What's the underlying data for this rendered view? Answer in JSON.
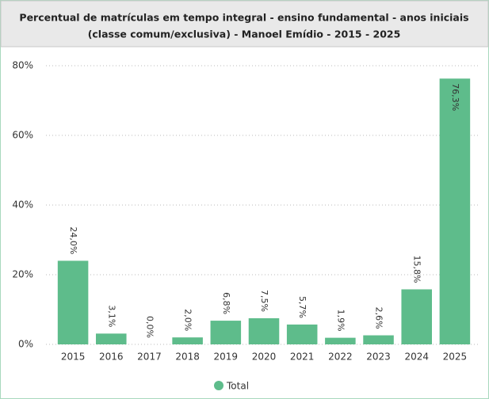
{
  "chart_data": {
    "type": "bar",
    "title": "Percentual de matrículas em tempo integral - ensino fundamental - anos iniciais",
    "subtitle": "(classe comum/exclusiva) - Manoel Emídio - 2015 - 2025",
    "categories": [
      "2015",
      "2016",
      "2017",
      "2018",
      "2019",
      "2020",
      "2021",
      "2022",
      "2023",
      "2024",
      "2025"
    ],
    "values": [
      24.0,
      3.1,
      0.0,
      2.0,
      6.8,
      7.5,
      5.7,
      1.9,
      2.6,
      15.8,
      76.3
    ],
    "value_labels": [
      "24,0%",
      "3,1%",
      "0,0%",
      "2,0%",
      "6,8%",
      "7,5%",
      "5,7%",
      "1,9%",
      "2,6%",
      "15,8%",
      "76,3%"
    ],
    "color": "#5ebc8b",
    "ylim": [
      0,
      80
    ],
    "yticks": [
      {
        "value": 0,
        "label": "0%"
      },
      {
        "value": 20,
        "label": "20%"
      },
      {
        "value": 40,
        "label": "40%"
      },
      {
        "value": 60,
        "label": "60%"
      },
      {
        "value": 80,
        "label": "80%"
      }
    ],
    "grid": true,
    "legend": {
      "name": "Total",
      "position": "bottom"
    }
  }
}
